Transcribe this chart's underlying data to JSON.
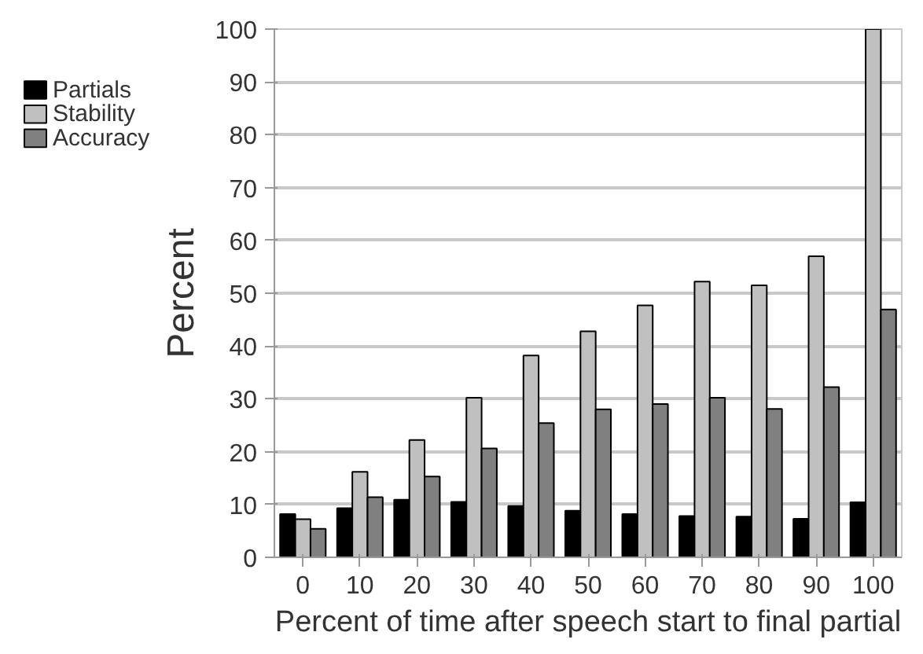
{
  "chart_data": {
    "type": "bar",
    "xlabel": "Percent of time after speech start to final partial",
    "ylabel": "Percent",
    "categories": [
      "0",
      "10",
      "20",
      "30",
      "40",
      "50",
      "60",
      "70",
      "80",
      "90",
      "100"
    ],
    "series": [
      {
        "name": "Partials",
        "color": "#000000",
        "values": [
          8.2,
          9.3,
          10.9,
          10.5,
          9.7,
          8.8,
          8.2,
          7.8,
          7.7,
          7.3,
          10.4
        ]
      },
      {
        "name": "Stability",
        "color": "#c0c0c0",
        "values": [
          7.2,
          16.2,
          22.2,
          30.2,
          38.2,
          42.8,
          47.7,
          52.2,
          51.5,
          57.0,
          100
        ]
      },
      {
        "name": "Accuracy",
        "color": "#808080",
        "values": [
          5.4,
          11.4,
          15.3,
          20.6,
          25.4,
          28.0,
          29.0,
          30.2,
          28.1,
          32.2,
          46.9
        ]
      }
    ],
    "ylim": [
      0,
      100
    ],
    "yticks": [
      0,
      10,
      20,
      30,
      40,
      50,
      60,
      70,
      80,
      90,
      100
    ],
    "grid": "y",
    "legend": "top left"
  }
}
